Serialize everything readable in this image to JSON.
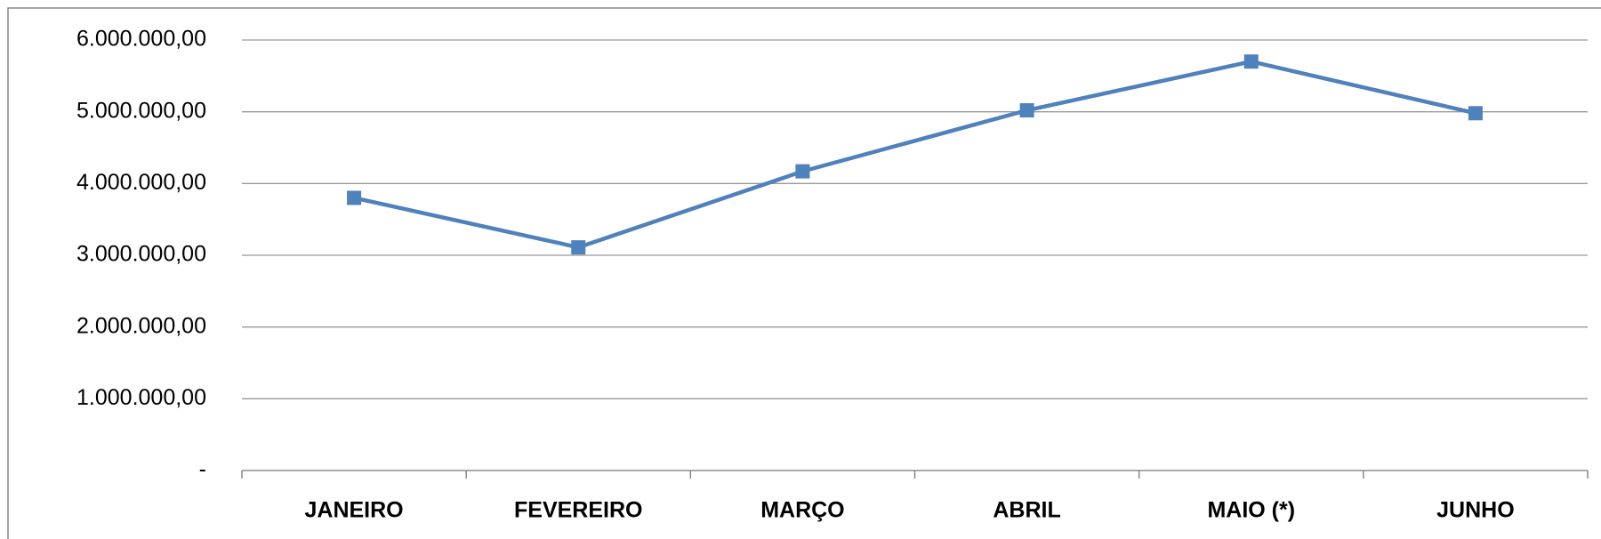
{
  "chart_data": {
    "type": "line",
    "categories": [
      "JANEIRO",
      "FEVEREIRO",
      "MARÇO",
      "ABRIL",
      "MAIO (*)",
      "JUNHO"
    ],
    "series": [
      {
        "color": "#4f81bd",
        "values": [
          3800000,
          3110000,
          4170000,
          5020000,
          5700000,
          4980000
        ]
      }
    ],
    "ylim": [
      0,
      6000000
    ],
    "yticks": [
      {
        "value": 0,
        "label": "-"
      },
      {
        "value": 1000000,
        "label": "1.000.000,00"
      },
      {
        "value": 2000000,
        "label": "2.000.000,00"
      },
      {
        "value": 3000000,
        "label": "3.000.000,00"
      },
      {
        "value": 4000000,
        "label": "4.000.000,00"
      },
      {
        "value": 5000000,
        "label": "5.000.000,00"
      },
      {
        "value": 6000000,
        "label": "6.000.000,00"
      }
    ],
    "grid": true
  }
}
